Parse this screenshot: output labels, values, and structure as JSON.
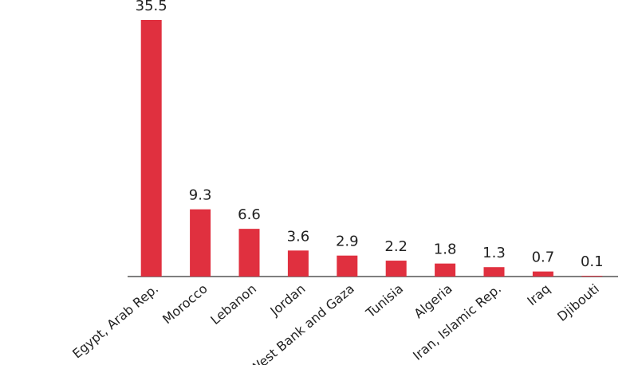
{
  "chart_data": {
    "type": "bar",
    "categories": [
      "Egypt, Arab Rep.",
      "Morocco",
      "Lebanon",
      "Jordan",
      "West Bank and Gaza",
      "Tunisia",
      "Algeria",
      "Iran, Islamic Rep.",
      "Iraq",
      "Djibouti"
    ],
    "values": [
      35.5,
      9.3,
      6.6,
      3.6,
      2.9,
      2.2,
      1.8,
      1.3,
      0.7,
      0.1
    ],
    "color": "#e0303f"
  }
}
